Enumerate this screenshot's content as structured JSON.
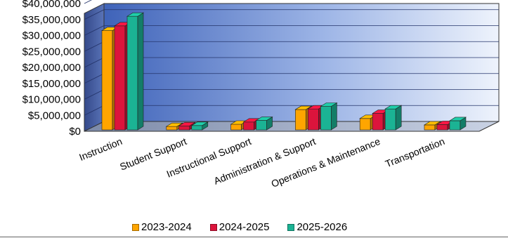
{
  "chart_data": {
    "type": "bar",
    "categories": [
      "Instruction",
      "Student Support",
      "Instructional Support",
      "Administration & Support",
      "Operations & Maintenance",
      "Transportation"
    ],
    "series": [
      {
        "name": "2023-2024",
        "color": "#FFA500",
        "values": [
          31500000,
          1500000,
          2200000,
          6800000,
          4000000,
          2000000
        ]
      },
      {
        "name": "2024-2025",
        "color": "#DC143C",
        "values": [
          33000000,
          1700000,
          2900000,
          7000000,
          5600000,
          2100000
        ]
      },
      {
        "name": "2025-2026",
        "color": "#1BB394",
        "values": [
          36000000,
          1800000,
          3400000,
          7800000,
          7000000,
          3300000
        ]
      }
    ],
    "y_ticks": [
      "$0",
      "$5,000,000",
      "$10,000,000",
      "$15,000,000",
      "$20,000,000",
      "$25,000,000",
      "$30,000,000",
      "$35,000,000",
      "$40,000,000"
    ],
    "ylim": [
      0,
      40000000
    ],
    "legend_position": "bottom",
    "grid": true,
    "style": "3d"
  }
}
